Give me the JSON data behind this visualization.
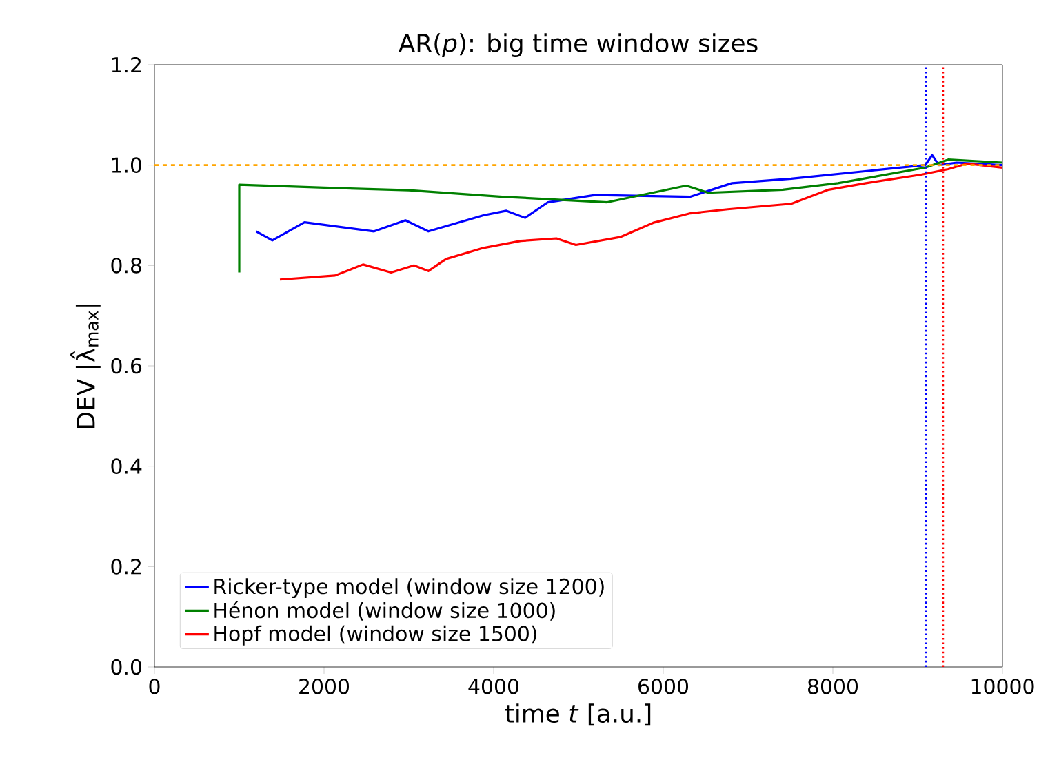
{
  "chart_data": {
    "type": "line",
    "title": "AR(*p*): big time window sizes",
    "xlabel": "time *t* [a.u.]",
    "ylabel": "DEV |λ̂$_{max}$|",
    "xlim": [
      0,
      10000
    ],
    "ylim": [
      0,
      1.2
    ],
    "xticks": [
      0,
      2000,
      4000,
      6000,
      8000,
      10000
    ],
    "yticks": [
      {
        "value": 0,
        "label": "0.0"
      },
      {
        "value": 0.2,
        "label": "0.2"
      },
      {
        "value": 0.4,
        "label": "0.4"
      },
      {
        "value": 0.6,
        "label": "0.6"
      },
      {
        "value": 0.8,
        "label": "0.8"
      },
      {
        "value": 1.0,
        "label": "1.0"
      },
      {
        "value": 1.2,
        "label": "1.2"
      }
    ],
    "legend": "bottom left",
    "grid": false,
    "marker": "none",
    "line_style": "solid",
    "series": [
      {
        "name": "Ricker-type model (window size 1200)",
        "color": "#0000ff",
        "x": [
          1200,
          1390,
          1770,
          2590,
          2960,
          3230,
          3880,
          4150,
          4370,
          4640,
          5180,
          5340,
          6320,
          6810,
          7510,
          9090,
          9170,
          9250,
          9460,
          10000
        ],
        "values": [
          0.868,
          0.85,
          0.886,
          0.868,
          0.89,
          0.868,
          0.9,
          0.909,
          0.895,
          0.926,
          0.94,
          0.94,
          0.937,
          0.964,
          0.973,
          1.0,
          1.02,
          1.0,
          1.005,
          1.0
        ]
      },
      {
        "name": "Hénon model (window size 1000)",
        "color": "#008000",
        "x": [
          1000,
          1000,
          2000,
          3000,
          4100,
          5340,
          6270,
          6530,
          7410,
          8060,
          9090,
          9360,
          10000
        ],
        "values": [
          0.786,
          0.961,
          0.955,
          0.95,
          0.937,
          0.926,
          0.959,
          0.945,
          0.951,
          0.964,
          0.995,
          1.011,
          1.005
        ]
      },
      {
        "name": "Hopf model (window size 1500)",
        "color": "#ff0000",
        "x": [
          1480,
          2130,
          2460,
          2790,
          3060,
          3230,
          3440,
          3880,
          4320,
          4740,
          4970,
          5500,
          5880,
          6320,
          6760,
          7510,
          7950,
          8390,
          9040,
          9360,
          9580,
          10000
        ],
        "values": [
          0.772,
          0.78,
          0.802,
          0.786,
          0.8,
          0.789,
          0.813,
          0.835,
          0.849,
          0.854,
          0.841,
          0.857,
          0.885,
          0.904,
          0.912,
          0.923,
          0.951,
          0.964,
          0.981,
          0.992,
          1.003,
          0.995
        ]
      }
    ],
    "ref_lines": [
      {
        "axis": "y",
        "value": 1.0,
        "color": "#ffa500",
        "line_style": "dashed"
      },
      {
        "axis": "x",
        "value": 9100,
        "color": "#0000ff",
        "line_style": "dotted"
      },
      {
        "axis": "x",
        "value": 9300,
        "color": "#ff0000",
        "line_style": "dotted"
      }
    ]
  }
}
